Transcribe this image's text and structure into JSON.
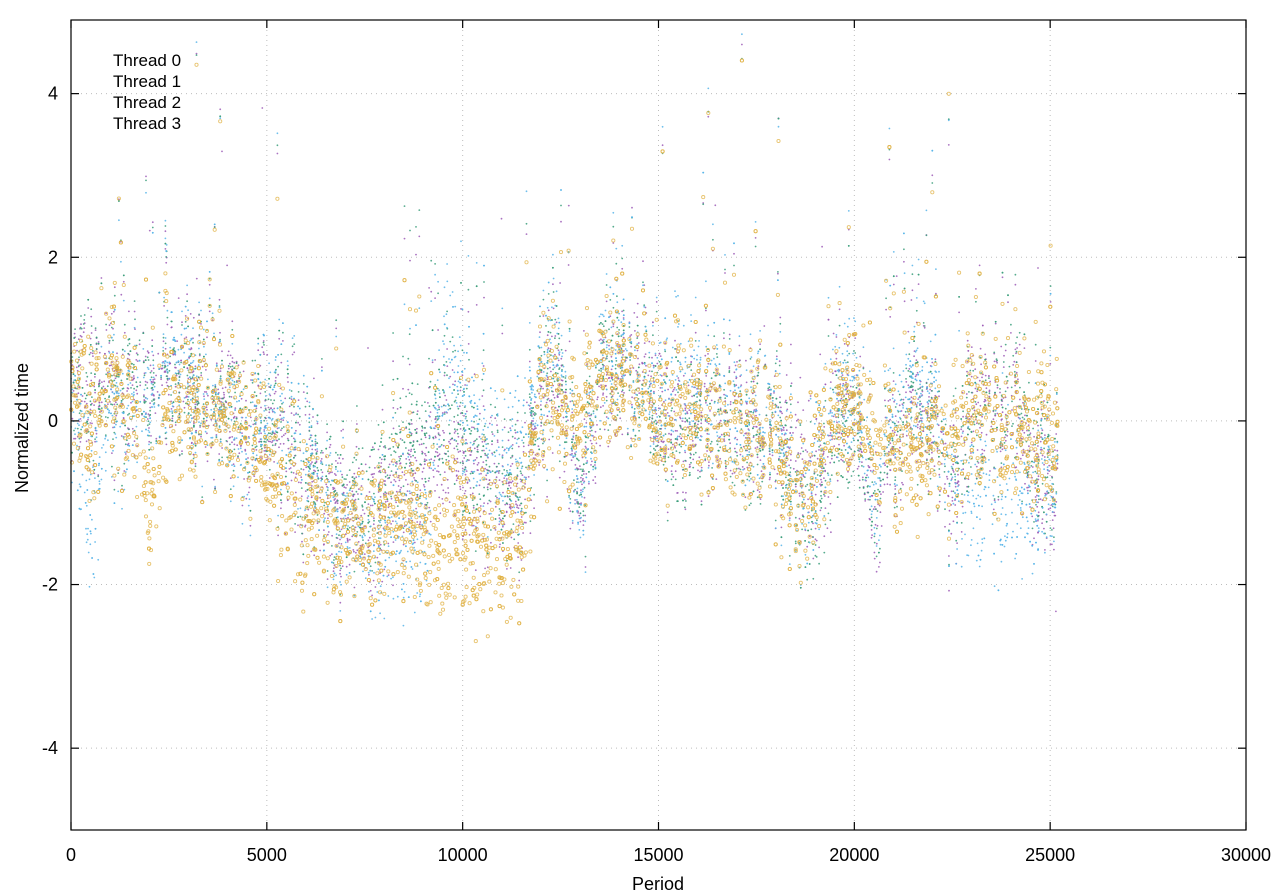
{
  "chart_data": {
    "type": "scatter",
    "title": "",
    "xlabel": "Period",
    "ylabel": "Normalized time",
    "xlim": [
      0,
      30000
    ],
    "ylim": [
      -5,
      4.9
    ],
    "x_ticks": [
      0,
      5000,
      10000,
      15000,
      20000,
      25000,
      30000
    ],
    "x_tick_labels": [
      "0",
      "5000",
      "10000",
      "15000",
      "20000",
      "25000",
      "30000"
    ],
    "y_ticks": [
      -4,
      -2,
      0,
      2,
      4
    ],
    "y_tick_labels": [
      "-4",
      "-2",
      "0",
      "2",
      "4"
    ],
    "grid": true,
    "legend": {
      "placement": "top-left"
    },
    "x_extent": [
      0,
      25200
    ],
    "series": [
      {
        "name": "Thread 0",
        "color": "#9b59b6",
        "marker": "dot",
        "trend": [
          [
            0,
            0.4
          ],
          [
            500,
            0.3
          ],
          [
            1000,
            0.5
          ],
          [
            1500,
            0.2
          ],
          [
            2000,
            0.3
          ],
          [
            2500,
            0.6
          ],
          [
            3000,
            0.5
          ],
          [
            3500,
            0.1
          ],
          [
            4000,
            0.3
          ],
          [
            4500,
            -0.2
          ],
          [
            5000,
            0.1
          ],
          [
            5500,
            -0.3
          ],
          [
            6000,
            -0.5
          ],
          [
            6500,
            -1.0
          ],
          [
            7000,
            -1.2
          ],
          [
            7500,
            -1.3
          ],
          [
            8000,
            -0.9
          ],
          [
            8500,
            -0.8
          ],
          [
            9000,
            -0.6
          ],
          [
            9500,
            -0.2
          ],
          [
            10000,
            -0.5
          ],
          [
            10500,
            -0.7
          ],
          [
            11000,
            -0.9
          ],
          [
            11500,
            -1.0
          ],
          [
            12000,
            0.2
          ],
          [
            12500,
            0.6
          ],
          [
            13000,
            -1.0
          ],
          [
            13500,
            0.3
          ],
          [
            14000,
            0.5
          ],
          [
            14500,
            0.7
          ],
          [
            15000,
            0.2
          ],
          [
            15500,
            -0.3
          ],
          [
            16000,
            0.1
          ],
          [
            16500,
            0.0
          ],
          [
            17000,
            0.1
          ],
          [
            17500,
            -0.2
          ],
          [
            18000,
            0.0
          ],
          [
            18500,
            -0.4
          ],
          [
            19000,
            -0.8
          ],
          [
            19500,
            0.0
          ],
          [
            20000,
            0.2
          ],
          [
            20500,
            -1.2
          ],
          [
            21000,
            -0.3
          ],
          [
            21500,
            0.1
          ],
          [
            22000,
            -0.1
          ],
          [
            22500,
            -0.8
          ],
          [
            23000,
            0.2
          ],
          [
            23500,
            -0.1
          ],
          [
            24000,
            0.4
          ],
          [
            24500,
            -0.6
          ],
          [
            25000,
            -0.9
          ],
          [
            25200,
            -0.6
          ]
        ]
      },
      {
        "name": "Thread 1",
        "color": "#3a9d7a",
        "marker": "dot",
        "trend": [
          [
            0,
            0.5
          ],
          [
            500,
            0.4
          ],
          [
            1000,
            0.3
          ],
          [
            1500,
            0.4
          ],
          [
            2000,
            0.2
          ],
          [
            2500,
            0.7
          ],
          [
            3000,
            0.4
          ],
          [
            3500,
            0.2
          ],
          [
            4000,
            0.1
          ],
          [
            4500,
            0.0
          ],
          [
            5000,
            0.2
          ],
          [
            5500,
            -0.2
          ],
          [
            6000,
            -0.4
          ],
          [
            6500,
            -0.9
          ],
          [
            7000,
            -1.1
          ],
          [
            7500,
            -1.0
          ],
          [
            8000,
            -0.6
          ],
          [
            8500,
            -0.4
          ],
          [
            9000,
            -0.3
          ],
          [
            9500,
            0.3
          ],
          [
            10000,
            -0.2
          ],
          [
            10500,
            -0.5
          ],
          [
            11000,
            -0.8
          ],
          [
            11500,
            -0.9
          ],
          [
            12000,
            0.4
          ],
          [
            12500,
            0.8
          ],
          [
            13000,
            -0.9
          ],
          [
            13500,
            0.5
          ],
          [
            14000,
            0.7
          ],
          [
            14500,
            0.4
          ],
          [
            15000,
            0.1
          ],
          [
            15500,
            -0.4
          ],
          [
            16000,
            0.0
          ],
          [
            16500,
            0.2
          ],
          [
            17000,
            -0.1
          ],
          [
            17500,
            -0.3
          ],
          [
            18000,
            0.1
          ],
          [
            18500,
            -1.1
          ],
          [
            19000,
            -1.0
          ],
          [
            19500,
            -0.2
          ],
          [
            20000,
            0.0
          ],
          [
            20500,
            -1.0
          ],
          [
            21000,
            -0.2
          ],
          [
            21500,
            0.3
          ],
          [
            22000,
            -0.2
          ],
          [
            22500,
            -0.4
          ],
          [
            23000,
            0.0
          ],
          [
            23500,
            -0.1
          ],
          [
            24000,
            0.5
          ],
          [
            24500,
            -0.4
          ],
          [
            25000,
            -0.7
          ],
          [
            25200,
            -0.5
          ]
        ]
      },
      {
        "name": "Thread 2",
        "color": "#56b4e9",
        "marker": "dot",
        "trend": [
          [
            0,
            0.2
          ],
          [
            500,
            -1.2
          ],
          [
            1000,
            0.2
          ],
          [
            1500,
            0.0
          ],
          [
            2000,
            0.1
          ],
          [
            2500,
            0.8
          ],
          [
            3000,
            0.6
          ],
          [
            3500,
            0.3
          ],
          [
            4000,
            0.0
          ],
          [
            4500,
            -0.4
          ],
          [
            5000,
            0.4
          ],
          [
            5500,
            -0.1
          ],
          [
            6000,
            -0.3
          ],
          [
            6500,
            -1.1
          ],
          [
            7000,
            -1.3
          ],
          [
            7500,
            -1.4
          ],
          [
            8000,
            -1.5
          ],
          [
            8500,
            -1.6
          ],
          [
            9000,
            -1.5
          ],
          [
            9500,
            0.9
          ],
          [
            10000,
            0.3
          ],
          [
            10500,
            -0.3
          ],
          [
            11000,
            -0.6
          ],
          [
            11500,
            -0.4
          ],
          [
            12000,
            0.5
          ],
          [
            12500,
            1.0
          ],
          [
            13000,
            -1.2
          ],
          [
            13500,
            0.6
          ],
          [
            14000,
            0.9
          ],
          [
            14500,
            0.3
          ],
          [
            15000,
            0.3
          ],
          [
            15500,
            0.4
          ],
          [
            16000,
            0.5
          ],
          [
            16500,
            0.3
          ],
          [
            17000,
            0.2
          ],
          [
            17500,
            0.0
          ],
          [
            18000,
            0.0
          ],
          [
            18500,
            -1.2
          ],
          [
            19000,
            -0.6
          ],
          [
            19500,
            0.3
          ],
          [
            20000,
            0.4
          ],
          [
            20500,
            -0.9
          ],
          [
            21000,
            0.1
          ],
          [
            21500,
            0.4
          ],
          [
            22000,
            0.2
          ],
          [
            22500,
            -0.5
          ],
          [
            23000,
            -1.0
          ],
          [
            23500,
            -1.1
          ],
          [
            24000,
            -0.9
          ],
          [
            24500,
            -1.0
          ],
          [
            25000,
            -0.8
          ],
          [
            25200,
            -0.5
          ]
        ]
      },
      {
        "name": "Thread 3",
        "color": "#e0b040",
        "marker": "circle",
        "trend": [
          [
            0,
            0.4
          ],
          [
            500,
            -0.1
          ],
          [
            1000,
            0.6
          ],
          [
            1500,
            0.1
          ],
          [
            2000,
            -1.2
          ],
          [
            2500,
            0.3
          ],
          [
            3000,
            0.2
          ],
          [
            3500,
            0.2
          ],
          [
            4000,
            0.0
          ],
          [
            4500,
            0.0
          ],
          [
            5000,
            -0.4
          ],
          [
            5500,
            -0.9
          ],
          [
            6000,
            -1.1
          ],
          [
            6500,
            -1.3
          ],
          [
            7000,
            -1.4
          ],
          [
            7500,
            -1.3
          ],
          [
            8000,
            -1.2
          ],
          [
            8500,
            -1.3
          ],
          [
            9000,
            -1.4
          ],
          [
            9500,
            -1.5
          ],
          [
            10000,
            -1.3
          ],
          [
            10500,
            -1.6
          ],
          [
            11000,
            -1.6
          ],
          [
            11500,
            -1.5
          ],
          [
            12000,
            0.3
          ],
          [
            12500,
            0.2
          ],
          [
            13000,
            0.0
          ],
          [
            13500,
            0.4
          ],
          [
            14000,
            0.5
          ],
          [
            14500,
            0.3
          ],
          [
            15000,
            0.0
          ],
          [
            15500,
            0.1
          ],
          [
            16000,
            0.2
          ],
          [
            16500,
            0.0
          ],
          [
            17000,
            -0.2
          ],
          [
            17500,
            -0.1
          ],
          [
            18000,
            -0.2
          ],
          [
            18500,
            -1.2
          ],
          [
            19000,
            -0.5
          ],
          [
            19500,
            0.1
          ],
          [
            20000,
            0.2
          ],
          [
            20500,
            -0.1
          ],
          [
            21000,
            -0.4
          ],
          [
            21500,
            -0.5
          ],
          [
            22000,
            -0.3
          ],
          [
            22500,
            0.0
          ],
          [
            23000,
            0.1
          ],
          [
            23500,
            -0.2
          ],
          [
            24000,
            -0.1
          ],
          [
            24500,
            -0.2
          ],
          [
            25000,
            -0.2
          ],
          [
            25200,
            -0.1
          ]
        ]
      }
    ]
  }
}
